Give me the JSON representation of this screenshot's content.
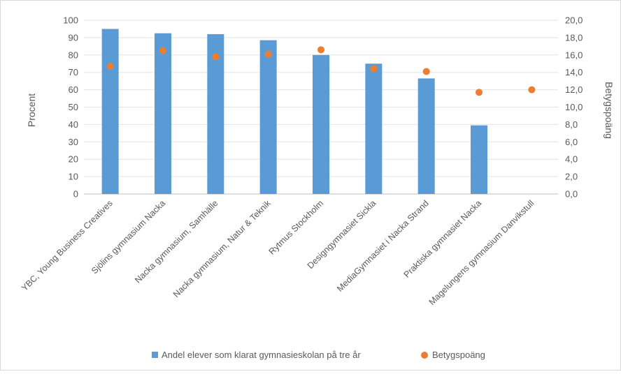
{
  "chart_data": {
    "type": "bar",
    "categories": [
      "YBC, Young Business Creatives",
      "Sjölins gymnasium Nacka",
      "Nacka gymnasium, Samhälle",
      "Nacka gymnasium, Natur & Teknik",
      "Rytmus Stockholm",
      "Designgymnasiet Sickla",
      "MediaGymnasiet i Nacka Strand",
      "Praktiska gymnasiet Nacka",
      "Magelungens gymnasium Danvikstull"
    ],
    "series": [
      {
        "name": "Andel elever som klarat gymnasieskolan på tre år",
        "type": "bar",
        "axis": "left",
        "color": "#5B9BD5",
        "values": [
          95,
          92.5,
          92,
          88.5,
          80,
          75,
          66.5,
          39.5,
          null
        ]
      },
      {
        "name": "Betygspoäng",
        "type": "scatter",
        "axis": "right",
        "color": "#ED7D31",
        "values": [
          14.7,
          16.5,
          15.8,
          16.1,
          16.6,
          14.4,
          14.1,
          11.7,
          12.0
        ]
      }
    ],
    "ylabel": "Procent",
    "y2label": "Betygspoäng",
    "ylim": [
      0,
      100
    ],
    "y2lim": [
      0,
      20
    ],
    "yticks": [
      "0",
      "10",
      "20",
      "30",
      "40",
      "50",
      "60",
      "70",
      "80",
      "90",
      "100"
    ],
    "y2ticks": [
      "0,0",
      "2,0",
      "4,0",
      "6,0",
      "8,0",
      "10,0",
      "12,0",
      "14,0",
      "16,0",
      "18,0",
      "20,0"
    ],
    "grid": true,
    "legend_position": "bottom"
  }
}
